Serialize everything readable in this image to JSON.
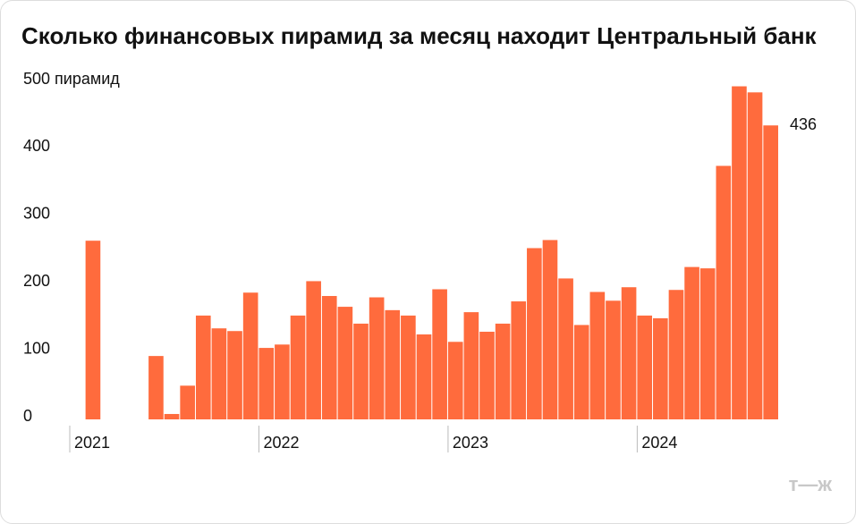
{
  "chart_data": {
    "type": "bar",
    "title": "Сколько финансовых пирамид за месяц находит Центральный банк",
    "categories": [
      "2021",
      null,
      null,
      null,
      null,
      null,
      null,
      null,
      null,
      null,
      null,
      null,
      "2022",
      null,
      null,
      null,
      null,
      null,
      null,
      null,
      null,
      null,
      null,
      null,
      "2023",
      null,
      null,
      null,
      null,
      null,
      null,
      null,
      null,
      null,
      null,
      null,
      "2024",
      null,
      null,
      null,
      null,
      null,
      null,
      null,
      null
    ],
    "series": [
      {
        "color": "#ff6b3d",
        "values": [
          null,
          265,
          null,
          null,
          null,
          94,
          8,
          50,
          154,
          135,
          131,
          188,
          106,
          111,
          154,
          205,
          183,
          167,
          142,
          181,
          162,
          154,
          126,
          193,
          115,
          159,
          130,
          142,
          175,
          254,
          266,
          209,
          140,
          189,
          176,
          196,
          154,
          150,
          192,
          226,
          224,
          376,
          494,
          485,
          436
        ]
      }
    ],
    "ylim": [
      0,
      500
    ],
    "yticks": [
      0,
      100,
      200,
      300,
      400,
      {
        "value": 500,
        "label": "500 пирамид"
      }
    ],
    "labeled_point": 44,
    "logo": "т—ж"
  }
}
